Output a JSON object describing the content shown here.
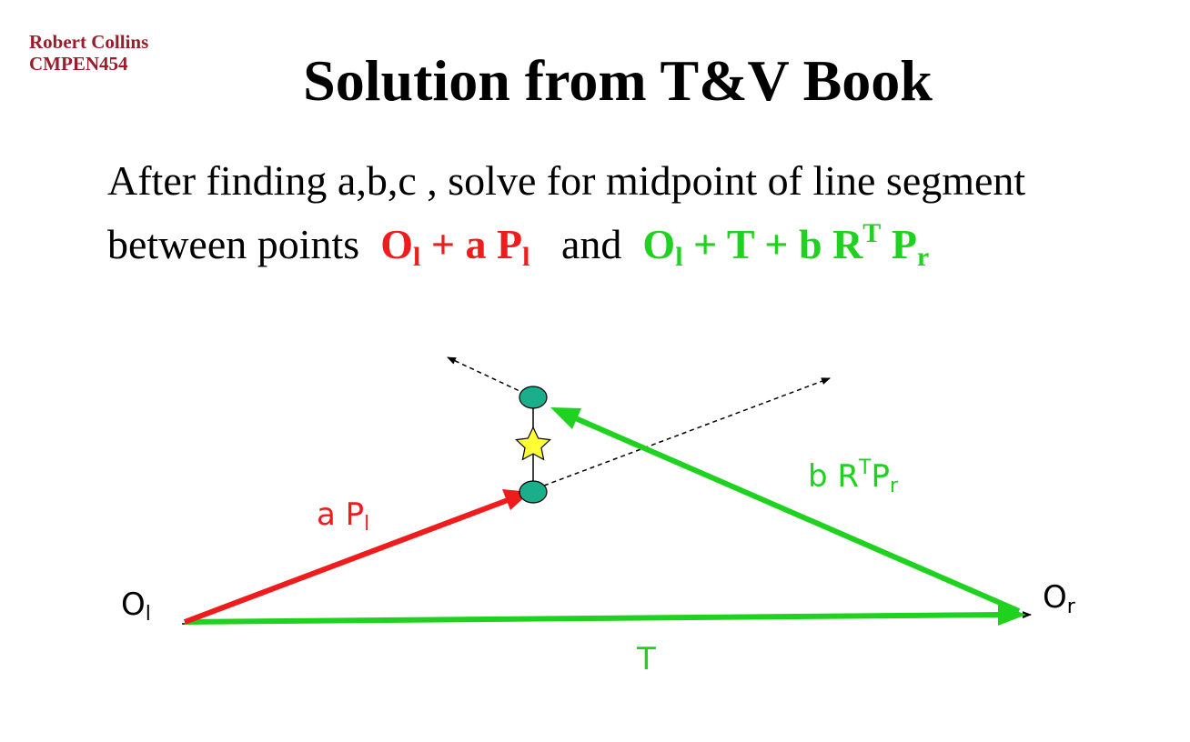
{
  "header": {
    "author_name": "Robert Collins",
    "course": "CMPEN454"
  },
  "slide": {
    "title": "Solution from T&V Book",
    "line1": "After finding a,b,c  , solve for midpoint of line segment",
    "line2_prefix": "between points",
    "expr1": {
      "o": "O",
      "o_sub": "l",
      "rest": " + a P",
      "p_sub": "l"
    },
    "and_word": "and",
    "expr2": {
      "o": "O",
      "o_sub": "l",
      "rest": " + T + b R",
      "r_sup": "T",
      "p": " P",
      "p_sub": "r"
    }
  },
  "diagram": {
    "label_ol": {
      "main": "O",
      "sub": "l"
    },
    "label_or": {
      "main": "O",
      "sub": "r"
    },
    "label_apl": {
      "main": "a P",
      "sub": "l"
    },
    "label_brtpr": {
      "main": "b R",
      "sup": "T",
      "mid": "P",
      "sub": "r"
    },
    "label_t": "T",
    "colors": {
      "red": "#ee1c1c",
      "green": "#1fd21f",
      "point_fill": "#1aae8c",
      "star_fill": "#ffff33"
    }
  }
}
